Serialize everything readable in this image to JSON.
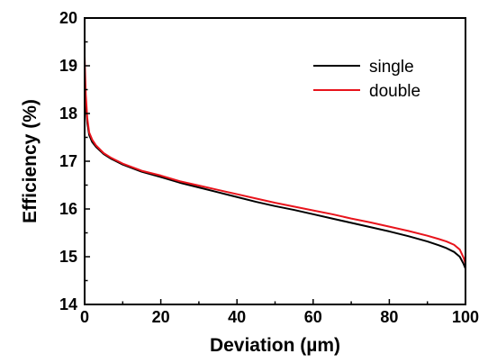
{
  "chart_data": {
    "type": "line",
    "title": "",
    "xlabel": "Deviation (µm)",
    "ylabel": "Efficiency (%)",
    "xlim": [
      0,
      100
    ],
    "ylim": [
      14,
      20
    ],
    "xticks": [
      0,
      20,
      40,
      60,
      80,
      100
    ],
    "yticks": [
      14,
      15,
      16,
      17,
      18,
      19,
      20
    ],
    "grid": false,
    "legend": "top-right",
    "series": [
      {
        "name": "single",
        "color": "#000000",
        "x": [
          0,
          0.3,
          0.7,
          1.2,
          2,
          3,
          5,
          7,
          10,
          15,
          20,
          25,
          30,
          35,
          40,
          45,
          50,
          55,
          60,
          65,
          70,
          75,
          80,
          85,
          90,
          93,
          95,
          97,
          98.5,
          99.5,
          100
        ],
        "y": [
          18.8,
          18.2,
          17.8,
          17.55,
          17.4,
          17.3,
          17.15,
          17.05,
          16.93,
          16.78,
          16.67,
          16.55,
          16.45,
          16.35,
          16.25,
          16.15,
          16.06,
          15.98,
          15.89,
          15.8,
          15.71,
          15.62,
          15.53,
          15.43,
          15.32,
          15.24,
          15.18,
          15.1,
          15.0,
          14.85,
          14.75
        ]
      },
      {
        "name": "double",
        "color": "#e8141c",
        "x": [
          0,
          0.3,
          0.7,
          1.2,
          2,
          3,
          5,
          7,
          10,
          15,
          20,
          25,
          30,
          35,
          40,
          45,
          50,
          55,
          60,
          65,
          70,
          75,
          80,
          85,
          90,
          93,
          95,
          97,
          98.5,
          99.5,
          100
        ],
        "y": [
          19.2,
          18.4,
          17.9,
          17.6,
          17.45,
          17.33,
          17.17,
          17.07,
          16.95,
          16.8,
          16.7,
          16.58,
          16.49,
          16.4,
          16.31,
          16.22,
          16.13,
          16.05,
          15.97,
          15.89,
          15.8,
          15.72,
          15.63,
          15.54,
          15.44,
          15.37,
          15.32,
          15.25,
          15.15,
          14.98,
          14.85
        ]
      }
    ]
  }
}
